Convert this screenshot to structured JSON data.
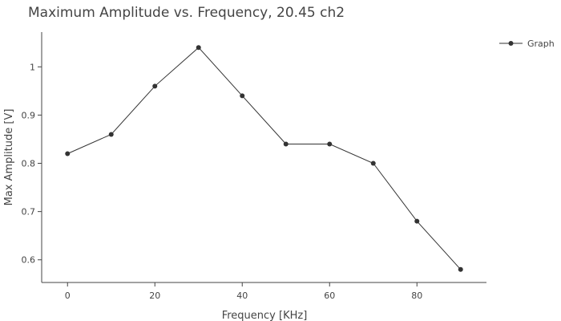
{
  "chart_data": {
    "type": "line",
    "title": "Maximum Amplitude vs. Frequency, 20.45 ch2",
    "xlabel": "Frequency [KHz]",
    "ylabel": "Max Amplitude [V]",
    "xlim": [
      -5,
      95
    ],
    "ylim": [
      0.553,
      1.072
    ],
    "xticks": [
      0,
      20,
      40,
      60,
      80
    ],
    "yticks": [
      0.6,
      0.7,
      0.8,
      0.9,
      1
    ],
    "ytick_labels": [
      "0.6",
      "0.7",
      "0.8",
      "0.9",
      "1"
    ],
    "grid": false,
    "legend_position": "top-right",
    "series": [
      {
        "name": "Graph",
        "color": "#333333",
        "x": [
          0,
          10,
          20,
          30,
          40,
          50,
          60,
          70,
          80,
          90
        ],
        "y": [
          0.82,
          0.86,
          0.96,
          1.04,
          0.94,
          0.84,
          0.84,
          0.8,
          0.68,
          0.58
        ]
      }
    ]
  }
}
